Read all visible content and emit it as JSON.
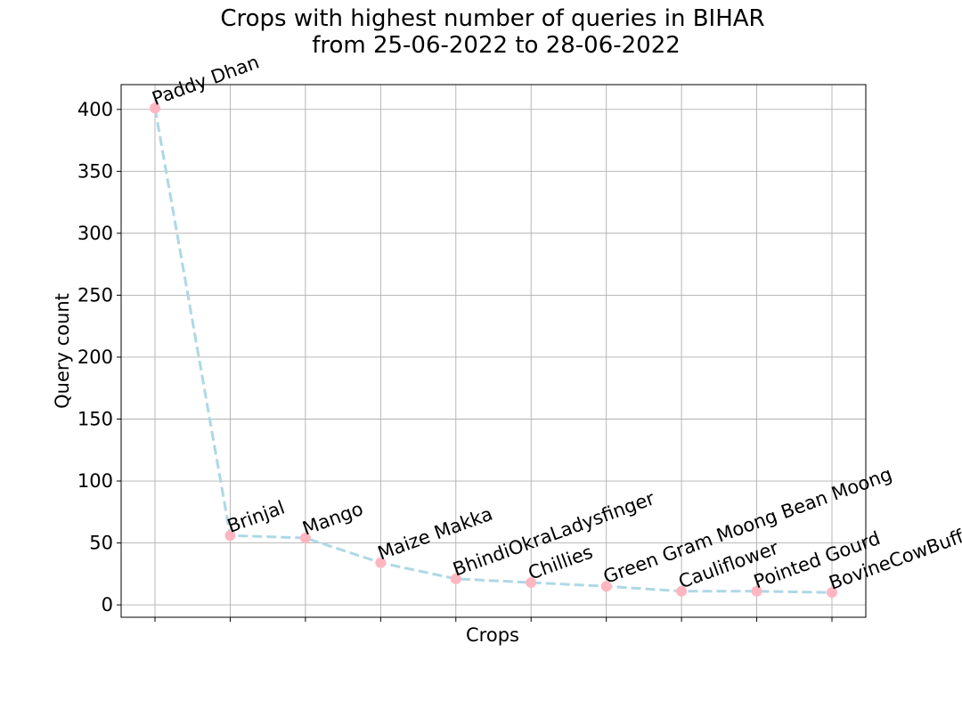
{
  "chart_data": {
    "type": "line",
    "title_line1": "Crops with highest number of queries in BIHAR",
    "title_line2": "from 25-06-2022 to 28-06-2022",
    "xlabel": "Crops",
    "ylabel": "Query count",
    "categories": [
      "Paddy Dhan",
      "Brinjal",
      "Mango",
      "Maize Makka",
      "BhindiOkraLadysfinger",
      "Chillies",
      "Green Gram Moong Bean Moong",
      "Cauliflower",
      "Pointed Gourd",
      "BovineCowBuffalo"
    ],
    "values": [
      401,
      56,
      54,
      34,
      21,
      18,
      15,
      11,
      11,
      10
    ],
    "ylim": [
      -10,
      420
    ],
    "yticks": [
      0,
      50,
      100,
      150,
      200,
      250,
      300,
      350,
      400
    ],
    "grid": true,
    "line_style": "dashed",
    "colors": {
      "line": "#add8e6",
      "marker": "#ffb6c1"
    }
  }
}
